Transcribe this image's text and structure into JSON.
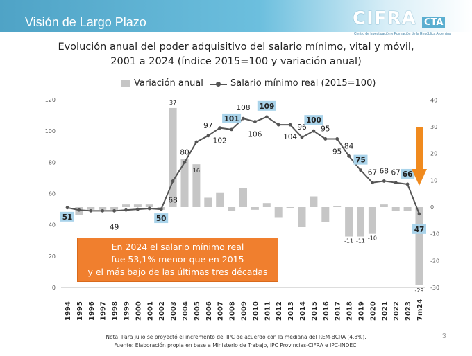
{
  "header": {
    "title": "Visión de Largo Plazo"
  },
  "logo": {
    "text": "CIFRA",
    "suffix": "CTA",
    "subtitle": "Centro de Investigación y Formación de la República Argentina"
  },
  "title_line1": "Evolución anual del poder adquisitivo del salario mínimo, vital y móvil,",
  "title_line2": "2001 a 2024 (índice 2015=100 y variación anual)",
  "callout": {
    "line1": "En 2024 el salario mínimo real",
    "line2": "fue 53,1% menor que en 2015",
    "line3": "y el más bajo de las últimas tres décadas"
  },
  "note": "Nota: Para julio se proyectó el incremento del IPC de acuerdo con la mediana del REM-BCRA (4,8%).",
  "source": "Fuente: Elaboración propia en base a Ministerio de Trabajo, IPC Provincias-CIFRA e IPC-INDEC.",
  "page_number": "3",
  "colors": {
    "bars": "#c6c6c6",
    "line": "#555555",
    "highlight_box": "#a9d3ea",
    "arrow": "#f08a1e"
  },
  "chart_data": {
    "type": "bar+line",
    "categories": [
      "1994",
      "1995",
      "1996",
      "1997",
      "1998",
      "1999",
      "2000",
      "2001",
      "2002",
      "2003",
      "2004",
      "2005",
      "2006",
      "2007",
      "2008",
      "2009",
      "2010",
      "2011",
      "2012",
      "2013",
      "2014",
      "2015",
      "2016",
      "2017",
      "2018",
      "2019",
      "2020",
      "2021",
      "2022",
      "2023",
      "7m24"
    ],
    "series": [
      {
        "name": "Variación anual",
        "type": "bar",
        "axis": "right",
        "values": [
          0,
          -3,
          -1,
          -1,
          -1,
          1,
          1,
          1,
          -1,
          37,
          18,
          16,
          3.5,
          5.5,
          -1.5,
          7,
          -1,
          1.5,
          -4,
          -0.5,
          -7.5,
          4,
          -5.5,
          0.5,
          -11,
          -11,
          -10,
          1,
          -1.5,
          -1.5,
          -29
        ]
      },
      {
        "name": "Salario mínimo real (2015=100)",
        "type": "line",
        "axis": "left",
        "values": [
          51,
          49.5,
          49,
          49,
          49,
          49.5,
          50,
          50.5,
          50,
          68,
          80,
          93,
          97,
          102,
          101,
          108,
          106,
          109,
          104,
          104,
          96,
          100,
          95,
          95,
          84,
          75,
          67,
          68,
          67,
          66,
          47
        ]
      }
    ],
    "left_axis": {
      "ylim": [
        0,
        120
      ],
      "ticks": [
        "0",
        "20",
        "40",
        "60",
        "80",
        "100",
        "120"
      ]
    },
    "right_axis": {
      "ylim": [
        -30,
        40
      ],
      "ticks": [
        "-30",
        "-20",
        "-10",
        "0",
        "10",
        "20",
        "30",
        "40"
      ]
    },
    "line_labels": [
      {
        "i": 0,
        "text": "51",
        "boxed": true
      },
      {
        "i": 4,
        "text": "49",
        "boxed": false
      },
      {
        "i": 8,
        "text": "50",
        "boxed": true
      },
      {
        "i": 9,
        "text": "68",
        "boxed": false
      },
      {
        "i": 10,
        "text": "80",
        "boxed": false
      },
      {
        "i": 12,
        "text": "97",
        "boxed": false
      },
      {
        "i": 13,
        "text": "102",
        "boxed": false
      },
      {
        "i": 14,
        "text": "101",
        "boxed": true
      },
      {
        "i": 15,
        "text": "108",
        "boxed": false
      },
      {
        "i": 16,
        "text": "106",
        "boxed": false
      },
      {
        "i": 17,
        "text": "109",
        "boxed": true
      },
      {
        "i": 19,
        "text": "104",
        "boxed": false
      },
      {
        "i": 20,
        "text": "96",
        "boxed": false
      },
      {
        "i": 21,
        "text": "100",
        "boxed": true
      },
      {
        "i": 22,
        "text": "95",
        "boxed": false
      },
      {
        "i": 23,
        "text": "95",
        "boxed": false
      },
      {
        "i": 24,
        "text": "84",
        "boxed": false
      },
      {
        "i": 25,
        "text": "75",
        "boxed": true
      },
      {
        "i": 26,
        "text": "67",
        "boxed": false
      },
      {
        "i": 27,
        "text": "68",
        "boxed": false
      },
      {
        "i": 28,
        "text": "67",
        "boxed": false
      },
      {
        "i": 29,
        "text": "66",
        "boxed": true
      },
      {
        "i": 30,
        "text": "47",
        "boxed": true
      }
    ],
    "bar_labels": [
      {
        "i": 9,
        "text": "37"
      },
      {
        "i": 11,
        "text": "16"
      },
      {
        "i": 24,
        "text": "-11"
      },
      {
        "i": 25,
        "text": "-11"
      },
      {
        "i": 26,
        "text": "-10"
      },
      {
        "i": 30,
        "text": "-29"
      }
    ],
    "grid": false,
    "legend_position": "top"
  }
}
